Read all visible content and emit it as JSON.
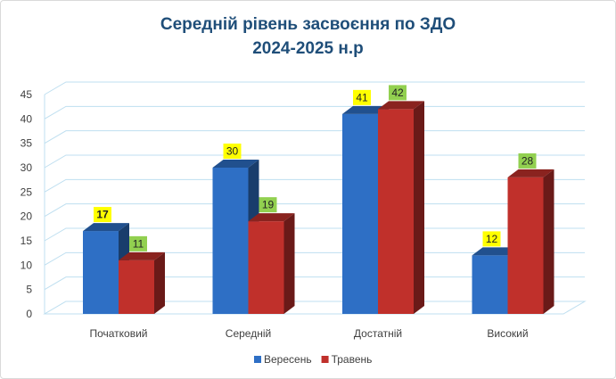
{
  "chart_data": {
    "type": "bar",
    "title": "Середній рівень засвоєння по ЗДО",
    "subtitle": "2024-2025 н.р",
    "categories": [
      "Початковий",
      "Середній",
      "Достатній",
      "Високий"
    ],
    "series": [
      {
        "name": "Вересень",
        "values": [
          17,
          30,
          41,
          12
        ],
        "color": "#2e6fc5",
        "label_bg": "#ffff00"
      },
      {
        "name": "Травень",
        "values": [
          11,
          19,
          42,
          28
        ],
        "color": "#c0302b",
        "label_bg": "#92d050"
      }
    ],
    "ylim": [
      0,
      45
    ],
    "yticks": [
      0,
      5,
      10,
      15,
      20,
      25,
      30,
      35,
      40,
      45
    ],
    "grid": true,
    "legend": "bottom",
    "style": "3d-clustered-column"
  }
}
